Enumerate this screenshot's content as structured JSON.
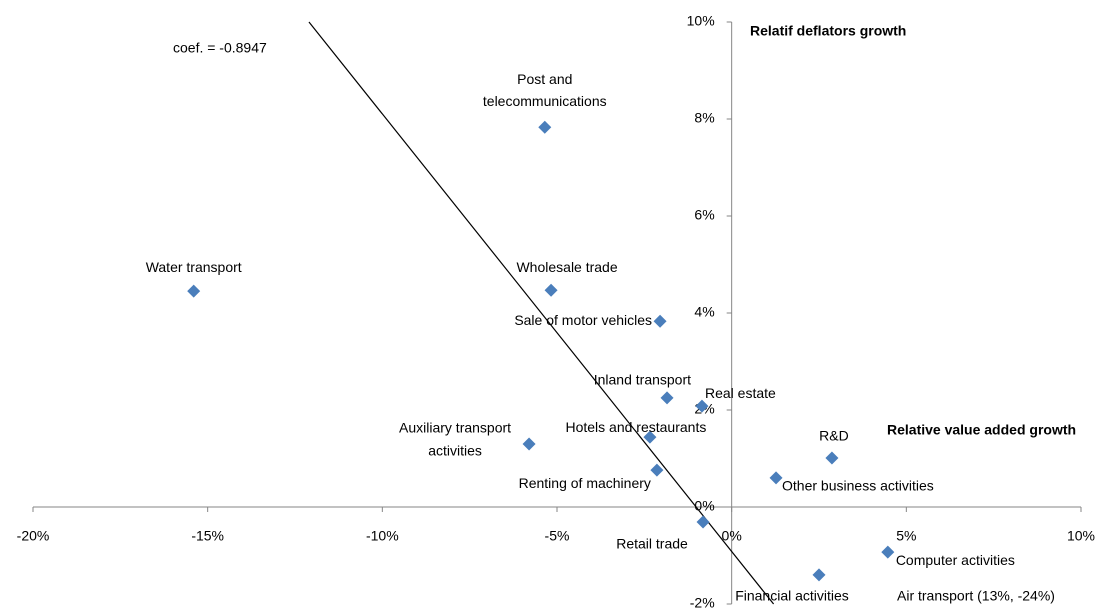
{
  "chart_data": {
    "type": "scatter",
    "x_axis_title": "Relative value added growth",
    "y_axis_title": "Relatif deflators growth",
    "annotation": "coef. = -0.8947",
    "note": "Air transport (13%, -24%)",
    "marker_color": "#4a7ebb",
    "line_color": "#000000",
    "xlim": [
      -20,
      10
    ],
    "ylim": [
      -2,
      10
    ],
    "xticks": [
      {
        "value": -20,
        "label": "-20%"
      },
      {
        "value": -15,
        "label": "-15%"
      },
      {
        "value": -10,
        "label": "-10%"
      },
      {
        "value": -5,
        "label": "-5%"
      },
      {
        "value": 0,
        "label": "0%"
      },
      {
        "value": 5,
        "label": "5%"
      },
      {
        "value": 10,
        "label": "10%"
      }
    ],
    "yticks": [
      {
        "value": -2,
        "label": "-2%"
      },
      {
        "value": 0,
        "label": "0%"
      },
      {
        "value": 2,
        "label": "2%"
      },
      {
        "value": 4,
        "label": "4%"
      },
      {
        "value": 6,
        "label": "6%"
      },
      {
        "value": 8,
        "label": "8%"
      },
      {
        "value": 10,
        "label": "10%"
      }
    ],
    "labels": [
      [
        "Post and",
        "telecommunications"
      ],
      [
        "Water transport"
      ],
      [
        "Wholesale trade"
      ],
      [
        "Sale of motor vehicles"
      ],
      [
        "Inland transport"
      ],
      [
        "Real estate"
      ],
      [
        "Hotels and restaurants"
      ],
      [
        "Auxiliary transport",
        "activities"
      ],
      [
        "Renting of machinery"
      ],
      [
        "R&D"
      ],
      [
        "Other business activities"
      ],
      [
        "Retail trade"
      ],
      [
        "Computer activities"
      ],
      [
        "Financial activities"
      ]
    ],
    "x": [
      -5.35,
      -15.4,
      -5.17,
      -2.05,
      -1.85,
      -0.85,
      -2.34,
      -5.8,
      -2.14,
      2.87,
      1.27,
      -0.82,
      4.47,
      2.5
    ],
    "y": [
      7.83,
      4.45,
      4.47,
      3.83,
      2.25,
      2.08,
      1.44,
      1.3,
      0.76,
      1.01,
      0.6,
      -0.31,
      -0.93,
      -1.4
    ],
    "trendline": {
      "x": [
        -12.1,
        1.2
      ],
      "y": [
        10,
        -2
      ]
    }
  }
}
